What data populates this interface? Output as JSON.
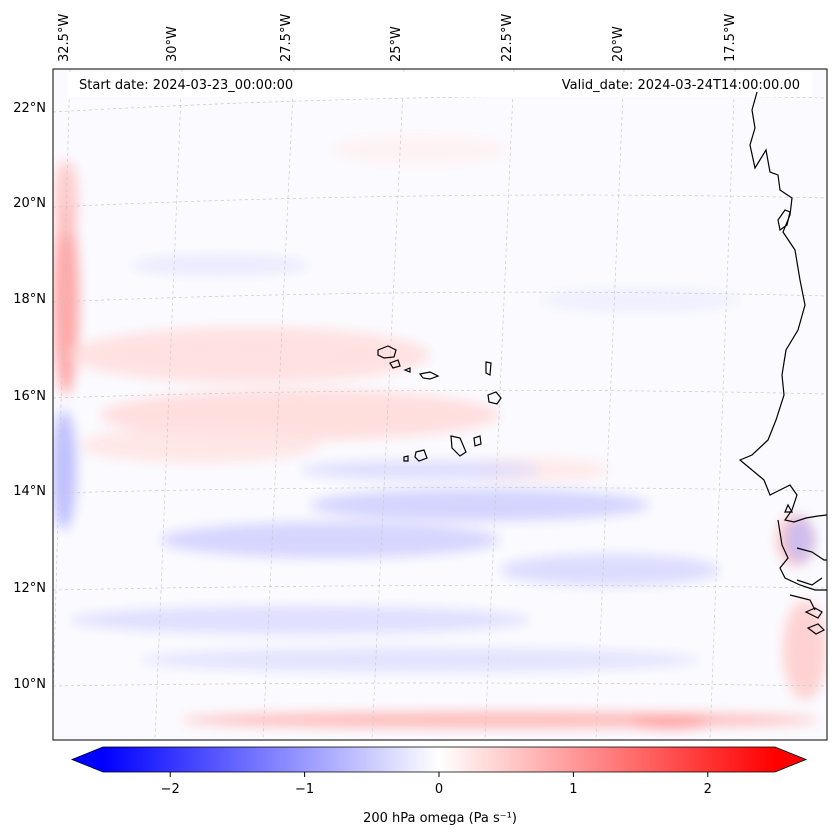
{
  "map": {
    "start_date": "Start date: 2024-03-23_00:00:00",
    "valid_date": "Valid_date: 2024-03-24T14:00:00.00",
    "lon_labels": [
      "32.5°W",
      "30°W",
      "27.5°W",
      "25°W",
      "22.5°W",
      "20°W",
      "17.5°W"
    ],
    "lat_labels": [
      "22°N",
      "20°N",
      "18°N",
      "16°N",
      "14°N",
      "12°N",
      "10°N"
    ],
    "colors": {
      "negative": "#0000ff",
      "neutral": "#ffffff",
      "positive": "#ff0000",
      "coast": "#000000"
    }
  },
  "colorbar": {
    "label": "200 hPa omega (Pa s⁻¹)",
    "ticks": [
      "−2",
      "−1",
      "0",
      "1",
      "2"
    ],
    "tick_values": [
      -2,
      -1,
      0,
      1,
      2
    ],
    "range": [
      -2.5,
      2.5
    ]
  }
}
